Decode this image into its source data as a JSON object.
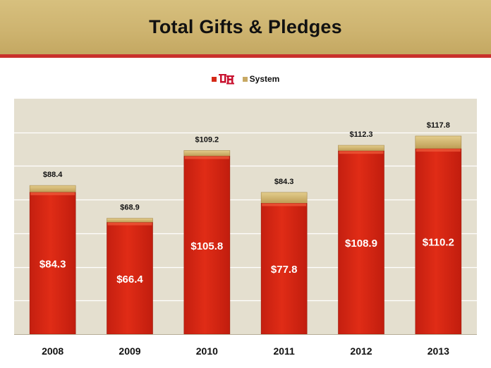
{
  "chart_data": {
    "type": "bar",
    "stacked": true,
    "title": "Total Gifts & Pledges",
    "categories": [
      "2008",
      "2009",
      "2010",
      "2011",
      "2012",
      "2013"
    ],
    "series": [
      {
        "name": "UH",
        "color": "#d52a18",
        "values": [
          84.3,
          66.4,
          105.8,
          77.8,
          108.9,
          110.2
        ],
        "labels": [
          "$84.3",
          "$66.4",
          "$105.8",
          "$77.8",
          "$108.9",
          "$110.2"
        ]
      },
      {
        "name": "System",
        "color": "#c8a964",
        "values": [
          4.1,
          2.5,
          3.4,
          6.5,
          3.4,
          7.6
        ]
      }
    ],
    "totals": [
      88.4,
      68.9,
      109.2,
      84.3,
      112.3,
      117.8
    ],
    "total_labels": [
      "$88.4",
      "$68.9",
      "$109.2",
      "$84.3",
      "$112.3",
      "$117.8"
    ],
    "ylim": [
      0,
      140
    ],
    "ytick_step": 20,
    "grid": true,
    "legend_position": "top-center"
  },
  "legend": {
    "uh_logo_icon": "uh-interlocking-logo",
    "system_label": "System"
  },
  "colors": {
    "banner": "#ceb470",
    "banner_border": "#c9302c",
    "plot_bg": "#e4dfcf",
    "bar_red": "#d52a18",
    "bar_gold": "#c8a964"
  }
}
